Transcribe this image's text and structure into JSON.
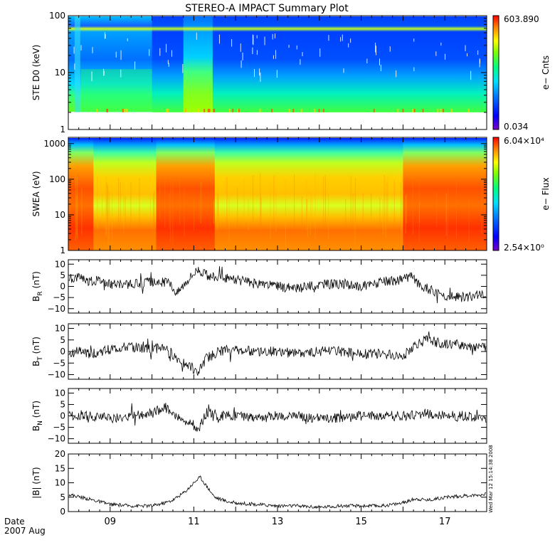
{
  "title": "STEREO-A IMPACT Summary Plot",
  "time_axis": {
    "row1": "Date",
    "row2": "2007 Aug",
    "ticks": [
      "09",
      "11",
      "13",
      "15",
      "17"
    ],
    "tick_days": [
      9,
      11,
      13,
      15,
      17
    ],
    "xlim_days": [
      8.0,
      18.0
    ]
  },
  "timestamp": "Wed Mar 12 15:14:38 2008",
  "colors": {
    "trace": "#000000",
    "frame": "#000000",
    "background": "#ffffff",
    "spectrogram_scale": [
      "#7a00c8",
      "#0000ff",
      "#0080ff",
      "#00e0ff",
      "#00ff80",
      "#80ff00",
      "#ffff00",
      "#ff8000",
      "#ff0000"
    ]
  },
  "chart_data": [
    {
      "type": "heatmap",
      "ylabel": "STE D0 (keV)",
      "yscale": "log",
      "ylim": [
        1,
        100
      ],
      "yticks": [
        "1",
        "10",
        "100"
      ],
      "colorbar": {
        "label": "e− Cnts",
        "max": "603.890",
        "min": "0.034"
      }
    },
    {
      "type": "heatmap",
      "ylabel": "SWEA (eV)",
      "yscale": "log",
      "ylim": [
        1,
        1500
      ],
      "yticks": [
        "1",
        "10",
        "100",
        "1000"
      ],
      "colorbar": {
        "label": "e− Flux",
        "max": "6.04×10⁴",
        "min": "2.54×10⁰"
      }
    },
    {
      "type": "line",
      "ylabel": "B_R (nT)",
      "ylim": [
        -12,
        12
      ],
      "yticks": [
        "−10",
        "−5",
        "0",
        "5",
        "10"
      ],
      "x_days": [
        8.0,
        8.3,
        8.5,
        8.8,
        9.0,
        9.5,
        10.0,
        10.4,
        10.6,
        10.8,
        11.0,
        11.1,
        11.3,
        11.6,
        12.0,
        12.5,
        13.0,
        13.5,
        14.0,
        14.5,
        15.0,
        15.5,
        16.0,
        16.2,
        16.4,
        16.7,
        17.0,
        17.5,
        18.0
      ],
      "y": [
        3,
        5,
        2,
        3,
        1,
        1,
        2,
        2,
        -3,
        2,
        6,
        8,
        5,
        4,
        3,
        1,
        0,
        -1,
        1,
        1,
        0,
        2,
        3,
        5,
        0,
        -2,
        -4,
        -5,
        -3
      ]
    },
    {
      "type": "line",
      "ylabel": "B_T (nT)",
      "ylim": [
        -12,
        12
      ],
      "yticks": [
        "−10",
        "−5",
        "0",
        "5",
        "10"
      ],
      "x_days": [
        8.0,
        8.2,
        8.5,
        8.8,
        9.0,
        9.5,
        10.0,
        10.3,
        10.6,
        10.9,
        11.1,
        11.3,
        11.6,
        12.0,
        12.5,
        13.0,
        13.5,
        14.0,
        14.5,
        15.0,
        15.5,
        16.0,
        16.3,
        16.6,
        17.0,
        17.5,
        17.8,
        18.0
      ],
      "y": [
        -2,
        0,
        -1,
        0,
        1,
        2,
        1,
        2,
        -3,
        -6,
        -9,
        -3,
        0,
        1,
        0,
        0,
        -1,
        0,
        0,
        -1,
        -1,
        -2,
        3,
        5,
        3,
        3,
        2,
        2
      ]
    },
    {
      "type": "line",
      "ylabel": "B_N (nT)",
      "ylim": [
        -12,
        12
      ],
      "yticks": [
        "−10",
        "−5",
        "0",
        "5",
        "10"
      ],
      "x_days": [
        8.0,
        8.5,
        9.0,
        9.5,
        10.0,
        10.3,
        10.6,
        10.8,
        11.0,
        11.1,
        11.3,
        11.6,
        12.0,
        12.5,
        13.0,
        13.5,
        14.0,
        14.5,
        15.0,
        15.5,
        16.0,
        16.5,
        17.0,
        17.5,
        18.0
      ],
      "y": [
        0,
        0,
        -1,
        0,
        1,
        4,
        0,
        -2,
        -4,
        -7,
        2,
        0,
        0,
        -1,
        0,
        0,
        -1,
        -1,
        0,
        0,
        0,
        1,
        0,
        0,
        -2
      ]
    },
    {
      "type": "line",
      "ylabel": "|B| (nT)",
      "ylim": [
        0,
        20
      ],
      "yticks": [
        "0",
        "5",
        "10",
        "15",
        "20"
      ],
      "x_days": [
        8.0,
        8.3,
        8.6,
        9.0,
        9.5,
        10.0,
        10.3,
        10.5,
        10.8,
        11.0,
        11.15,
        11.3,
        11.5,
        11.8,
        12.0,
        12.5,
        13.0,
        13.5,
        14.0,
        14.5,
        15.0,
        15.5,
        16.0,
        16.3,
        16.6,
        17.0,
        17.5,
        18.0
      ],
      "y": [
        6,
        5,
        4,
        2.5,
        2,
        2,
        3,
        4,
        7,
        10,
        12,
        9,
        5,
        3.5,
        3,
        2.5,
        2,
        2,
        1.5,
        2,
        2,
        2,
        3,
        4.5,
        4,
        5,
        5.5,
        6
      ]
    }
  ]
}
